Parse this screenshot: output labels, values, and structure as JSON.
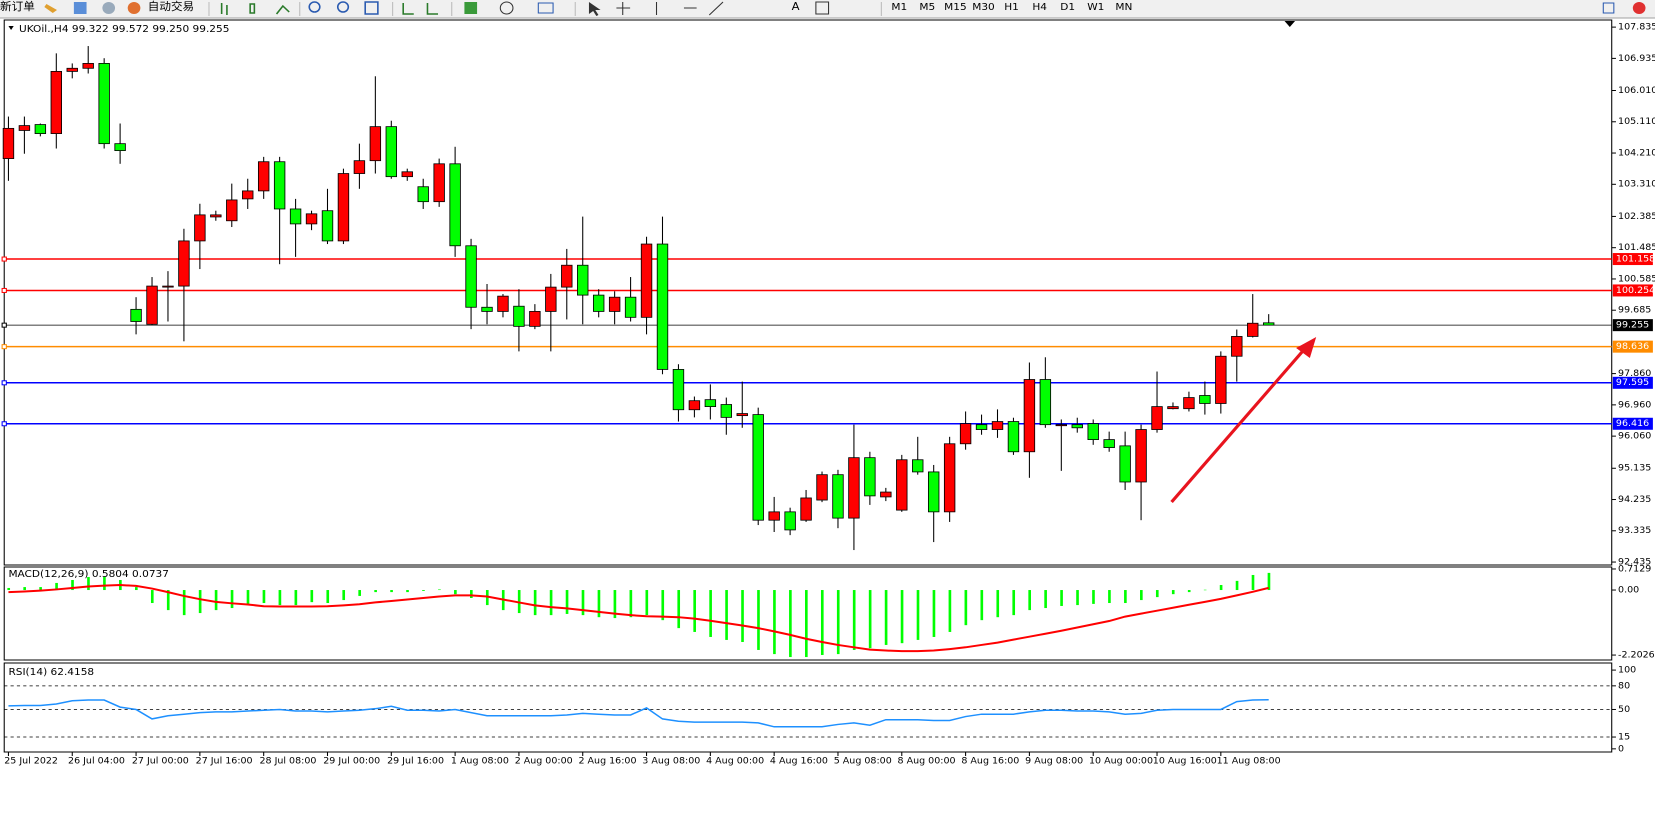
{
  "toolbar": {
    "new_order": "新订单",
    "auto_trading": "自动交易",
    "timeframes": [
      "M1",
      "M5",
      "M15",
      "M30",
      "H1",
      "H4",
      "D1",
      "W1",
      "MN"
    ]
  },
  "chart_data": [
    {
      "type": "candlestick",
      "title": "UKOil.,H4  99.322 99.572 99.250 99.255",
      "up_color": "#ff0000",
      "down_color": "#00ff00",
      "categories": [
        "25 Jul 2022",
        null,
        null,
        null,
        "26 Jul 04:00",
        null,
        null,
        null,
        "27 Jul 00:00",
        null,
        null,
        null,
        "27 Jul 16:00",
        null,
        null,
        null,
        "28 Jul 08:00",
        null,
        null,
        null,
        "29 Jul 00:00",
        null,
        null,
        null,
        "29 Jul 16:00",
        null,
        null,
        null,
        "1 Aug 08:00",
        null,
        null,
        null,
        "2 Aug 00:00",
        null,
        null,
        null,
        "2 Aug 16:00",
        null,
        null,
        null,
        "3 Aug 08:00",
        null,
        null,
        null,
        "4 Aug 00:00",
        null,
        null,
        null,
        "4 Aug 16:00",
        null,
        null,
        null,
        "5 Aug 08:00",
        null,
        null,
        null,
        "8 Aug 00:00",
        null,
        null,
        null,
        "8 Aug 16:00",
        null,
        null,
        null,
        "9 Aug 08:00",
        null,
        null,
        null,
        "10 Aug 00:00",
        null,
        null,
        null,
        "10 Aug 16:00",
        null,
        null,
        null,
        "11 Aug 08:00",
        null,
        null,
        null
      ],
      "open": [
        104.05,
        104.86,
        105.03,
        104.77,
        106.56,
        106.65,
        106.79,
        104.48,
        99.71,
        99.28,
        100.35,
        100.38,
        101.68,
        102.37,
        102.26,
        102.89,
        103.12,
        103.96,
        102.6,
        102.17,
        102.55,
        101.68,
        103.62,
        103.99,
        104.97,
        103.53,
        103.24,
        102.81,
        103.9,
        101.54,
        99.77,
        99.65,
        99.8,
        99.22,
        99.65,
        100.35,
        100.98,
        100.12,
        99.65,
        100.06,
        99.48,
        101.59,
        97.98,
        96.82,
        97.11,
        96.97,
        96.65,
        96.68,
        93.64,
        93.88,
        93.64,
        94.22,
        94.95,
        93.7,
        95.44,
        94.31,
        93.93,
        95.38,
        95.03,
        93.88,
        95.84,
        96.39,
        96.25,
        96.48,
        95.61,
        97.69,
        96.36,
        96.39,
        96.42,
        95.96,
        95.78,
        94.74,
        96.25,
        96.85,
        96.85,
        97.23,
        97.0,
        98.36,
        98.93,
        99.322
      ],
      "high": [
        105.26,
        105.26,
        105.06,
        107.08,
        106.79,
        107.29,
        106.94,
        105.06,
        100.06,
        100.64,
        100.81,
        102.03,
        102.75,
        102.55,
        103.33,
        103.47,
        104.1,
        104.1,
        102.89,
        102.55,
        103.18,
        103.76,
        104.48,
        106.42,
        105.14,
        103.76,
        103.47,
        104.05,
        104.39,
        101.74,
        100.44,
        100.15,
        100.29,
        99.86,
        100.73,
        101.45,
        102.38,
        100.29,
        100.23,
        100.64,
        101.8,
        102.38,
        98.13,
        97.2,
        97.55,
        97.17,
        97.63,
        96.88,
        94.31,
        94.0,
        94.51,
        95.04,
        95.09,
        96.39,
        95.61,
        94.57,
        95.52,
        96.04,
        95.23,
        96.04,
        96.77,
        96.68,
        96.83,
        96.59,
        98.18,
        98.33,
        96.54,
        96.59,
        96.54,
        96.19,
        96.19,
        96.39,
        97.92,
        97.03,
        97.34,
        97.63,
        98.5,
        99.13,
        100.15,
        99.572
      ],
      "low": [
        103.41,
        104.19,
        104.69,
        104.34,
        106.36,
        106.5,
        104.34,
        103.9,
        98.99,
        99.25,
        99.36,
        98.79,
        100.87,
        102.26,
        102.08,
        102.6,
        102.89,
        101.01,
        101.22,
        101.99,
        101.59,
        101.59,
        103.18,
        103.62,
        103.47,
        103.41,
        102.6,
        102.66,
        101.22,
        99.14,
        99.28,
        99.48,
        98.5,
        99.14,
        98.5,
        99.42,
        99.28,
        99.48,
        99.28,
        99.36,
        98.99,
        97.84,
        96.48,
        96.6,
        96.54,
        96.1,
        96.3,
        93.5,
        93.3,
        93.21,
        93.59,
        94.16,
        93.41,
        92.78,
        94.08,
        94.19,
        93.88,
        94.95,
        93.01,
        93.59,
        95.67,
        96.1,
        96.01,
        95.52,
        94.86,
        96.3,
        95.06,
        96.16,
        95.81,
        95.61,
        94.51,
        93.64,
        96.16,
        96.83,
        96.77,
        96.68,
        96.71,
        97.63,
        98.9,
        99.25
      ],
      "close": [
        104.92,
        105.0,
        104.77,
        106.56,
        106.65,
        106.79,
        104.48,
        104.28,
        99.36,
        100.38,
        100.38,
        101.68,
        102.43,
        102.43,
        102.86,
        103.12,
        103.96,
        102.6,
        102.17,
        102.46,
        101.68,
        103.62,
        103.99,
        104.97,
        103.53,
        103.67,
        102.81,
        103.9,
        101.54,
        99.77,
        99.65,
        100.09,
        99.22,
        99.65,
        100.35,
        100.98,
        100.12,
        99.65,
        100.06,
        99.48,
        101.59,
        97.98,
        96.82,
        97.08,
        96.91,
        96.6,
        96.71,
        93.64,
        93.88,
        93.36,
        94.28,
        94.95,
        93.7,
        95.44,
        94.34,
        94.45,
        95.38,
        95.03,
        93.88,
        95.84,
        96.42,
        96.25,
        96.48,
        95.61,
        97.69,
        96.39,
        96.39,
        96.3,
        95.96,
        95.73,
        94.74,
        96.25,
        96.91,
        96.91,
        97.17,
        97.0,
        98.36,
        98.93,
        99.31,
        99.255
      ],
      "ylim": [
        92.35,
        108.04
      ],
      "yticks": [
        107.835,
        106.935,
        {
          "value": 106.01,
          "label": "106.010"
        },
        {
          "value": 105.11,
          "label": "105.110"
        },
        {
          "value": 104.21,
          "label": "104.210"
        },
        {
          "value": 103.31,
          "label": "103.310"
        },
        102.385,
        101.485,
        100.585,
        99.685,
        {
          "value": 97.86,
          "label": "97.860"
        },
        {
          "value": 96.96,
          "label": "96.960"
        },
        {
          "value": 96.06,
          "label": "96.060"
        },
        95.135,
        94.235,
        93.335,
        92.435
      ],
      "price_lines": [
        {
          "value": 101.158,
          "color": "#ff0000"
        },
        {
          "value": 100.254,
          "color": "#ff0000"
        },
        {
          "value": 99.255,
          "color": "#000000"
        },
        {
          "value": 98.636,
          "color": "#ff8c00"
        },
        {
          "value": 97.595,
          "color": "#0000ff"
        },
        {
          "value": 96.416,
          "color": "#0000ff"
        }
      ]
    },
    {
      "type": "macd",
      "title": "MACD(12,26,9) 0.5804 0.0737",
      "histogram": {
        "color": "#00ff00",
        "values": [
          0.07,
          0.1,
          0.1,
          0.24,
          0.34,
          0.44,
          0.44,
          0.34,
          0.1,
          -0.44,
          -0.68,
          -0.85,
          -0.78,
          -0.68,
          -0.61,
          -0.51,
          -0.44,
          -0.51,
          -0.51,
          -0.41,
          -0.44,
          -0.34,
          -0.2,
          -0.07,
          -0.07,
          -0.07,
          -0.03,
          0.02,
          -0.14,
          -0.27,
          -0.51,
          -0.68,
          -0.78,
          -0.85,
          -0.85,
          -0.81,
          -0.85,
          -0.92,
          -0.95,
          -0.92,
          -0.85,
          -1.02,
          -1.29,
          -1.42,
          -1.59,
          -1.69,
          -1.76,
          -2.03,
          -2.17,
          -2.27,
          -2.27,
          -2.2,
          -2.17,
          -2.03,
          -1.97,
          -1.86,
          -1.8,
          -1.69,
          -1.59,
          -1.42,
          -1.19,
          -1.02,
          -0.92,
          -0.85,
          -0.68,
          -0.61,
          -0.54,
          -0.51,
          -0.47,
          -0.44,
          -0.44,
          -0.34,
          -0.24,
          -0.14,
          -0.07,
          0.01,
          0.17,
          0.31,
          0.51,
          0.5804
        ]
      },
      "signal": {
        "color": "#ff0000",
        "values": [
          -0.07,
          -0.05,
          -0.02,
          0.02,
          0.07,
          0.12,
          0.15,
          0.17,
          0.14,
          0.05,
          -0.07,
          -0.2,
          -0.31,
          -0.4,
          -0.45,
          -0.49,
          -0.55,
          -0.56,
          -0.56,
          -0.56,
          -0.55,
          -0.52,
          -0.48,
          -0.42,
          -0.37,
          -0.32,
          -0.27,
          -0.22,
          -0.18,
          -0.18,
          -0.22,
          -0.32,
          -0.42,
          -0.52,
          -0.58,
          -0.62,
          -0.68,
          -0.74,
          -0.8,
          -0.85,
          -0.89,
          -0.9,
          -0.92,
          -0.97,
          -1.04,
          -1.12,
          -1.2,
          -1.29,
          -1.4,
          -1.52,
          -1.65,
          -1.76,
          -1.86,
          -1.94,
          -2.02,
          -2.05,
          -2.07,
          -2.07,
          -2.05,
          -2.0,
          -1.94,
          -1.86,
          -1.78,
          -1.68,
          -1.58,
          -1.48,
          -1.38,
          -1.27,
          -1.16,
          -1.05,
          -0.9,
          -0.8,
          -0.7,
          -0.6,
          -0.5,
          -0.4,
          -0.3,
          -0.18,
          -0.06,
          0.0737
        ]
      },
      "ylim": [
        -2.37,
        0.78
      ],
      "yticks": [
        0.7129,
        {
          "value": 0,
          "label": "0.00"
        },
        -2.2026
      ]
    },
    {
      "type": "line",
      "title": "RSI(14) 62.4158",
      "color": "#1e90ff",
      "values": [
        54.6,
        55,
        55,
        57,
        61,
        62,
        62,
        53,
        50,
        38,
        42,
        44,
        46,
        47,
        47,
        48,
        49,
        50,
        48,
        48,
        47,
        48,
        49,
        51,
        54,
        49,
        49,
        48,
        50,
        46,
        42,
        42,
        42,
        42,
        42,
        43,
        45,
        44,
        43,
        43,
        52,
        38,
        35,
        34,
        34,
        34,
        34,
        33,
        28,
        28,
        28,
        28,
        31,
        33,
        30,
        37,
        37,
        37,
        36,
        36,
        41,
        44,
        44,
        44,
        47,
        49,
        49,
        48,
        48,
        47,
        44,
        45,
        49,
        50,
        50,
        50,
        50,
        60,
        62,
        62.4158
      ],
      "ylim": [
        -4,
        109
      ],
      "yticks": [
        100,
        80,
        50,
        15,
        0
      ],
      "dashed_levels": [
        80,
        50,
        15
      ]
    }
  ]
}
